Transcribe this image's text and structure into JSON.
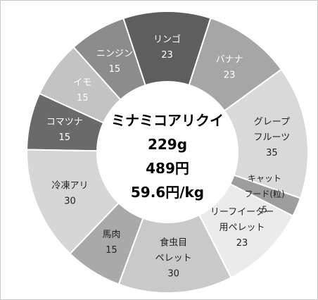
{
  "chart_data": {
    "type": "pie",
    "title": "",
    "slices": [
      {
        "label_lines": [
          "コマツナ"
        ],
        "value_text": "15",
        "value": 15,
        "color": "#6a6a6a",
        "text_color": "#ffffff"
      },
      {
        "label_lines": [
          "イモ"
        ],
        "value_text": "15",
        "value": 15,
        "color": "#c3c3c3",
        "text_color": "#ffffff"
      },
      {
        "label_lines": [
          "ニンジン"
        ],
        "value_text": "15",
        "value": 15,
        "color": "#8c8c8c",
        "text_color": "#ffffff"
      },
      {
        "label_lines": [
          "リンゴ"
        ],
        "value_text": "23",
        "value": 23,
        "color": "#5e5e5e",
        "text_color": "#ffffff"
      },
      {
        "label_lines": [
          "バナナ"
        ],
        "value_text": "23",
        "value": 23,
        "color": "#a6a6a6",
        "text_color": "#ffffff"
      },
      {
        "label_lines": [
          "グレープ",
          "フルーツ"
        ],
        "value_text": "35",
        "value": 35,
        "color": "#d9d9d9",
        "text_color": "#222222"
      },
      {
        "label_lines": [
          "キャット",
          "フード(粒)"
        ],
        "value_text": "5",
        "value": 5,
        "color": "#9d9d9d",
        "text_color": "#222222"
      },
      {
        "label_lines": [
          "リーフイーター",
          "用ペレット"
        ],
        "value_text": "23",
        "value": 23,
        "color": "#ebebeb",
        "text_color": "#222222"
      },
      {
        "label_lines": [
          "食虫目",
          "ペレット"
        ],
        "value_text": "30",
        "value": 30,
        "color": "#c9c9c9",
        "text_color": "#222222"
      },
      {
        "label_lines": [
          "馬肉"
        ],
        "value_text": "15",
        "value": 15,
        "color": "#a9a9a9",
        "text_color": "#222222"
      },
      {
        "label_lines": [
          "冷凍アリ"
        ],
        "value_text": "30",
        "value": 30,
        "color": "#d6d6d6",
        "text_color": "#222222"
      }
    ],
    "center_lines": [
      "ミナミコアリクイ",
      "229g",
      "489円",
      "59.6円/kg"
    ]
  }
}
